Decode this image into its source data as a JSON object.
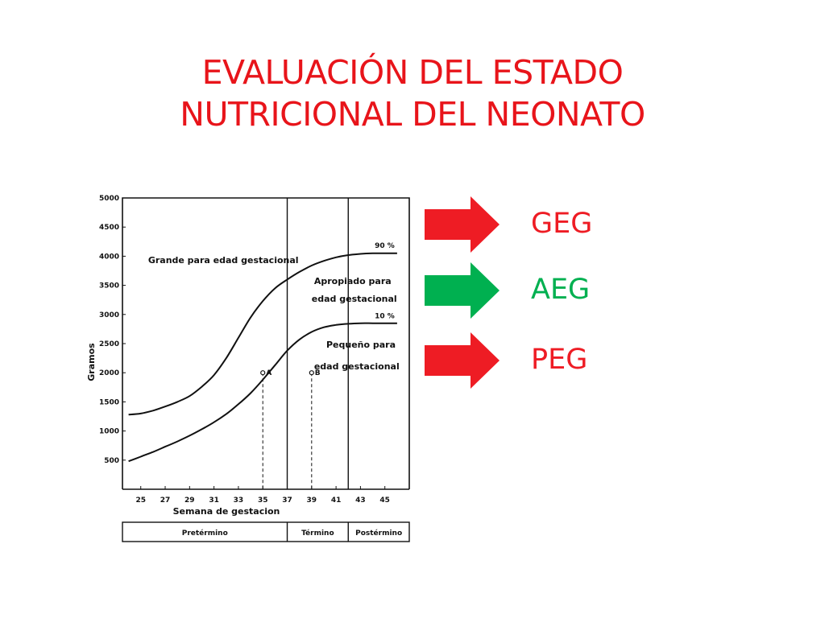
{
  "title": {
    "line1": "EVALUACIÓN DEL ESTADO",
    "line2": "NUTRICIONAL DEL NEONATO",
    "color": "#e8141a"
  },
  "chart_data": {
    "type": "line",
    "xlabel": "Semana de gestacion",
    "ylabel": "Gramos",
    "xlim": [
      23.5,
      47
    ],
    "ylim": [
      0,
      5000
    ],
    "x_ticks": [
      25,
      27,
      29,
      31,
      33,
      35,
      37,
      39,
      41,
      43,
      45
    ],
    "y_ticks": [
      500,
      1000,
      1500,
      2000,
      2500,
      3000,
      3500,
      4000,
      4500,
      5000
    ],
    "y_tick_labels": [
      "500",
      "1000",
      "1500",
      "2000",
      "2500",
      "3000",
      "3500",
      "4000",
      "4500",
      "5000"
    ],
    "grid": false,
    "series": [
      {
        "name": "90 %",
        "x": [
          24,
          25,
          26,
          27,
          28,
          29,
          30,
          31,
          32,
          33,
          34,
          35,
          36,
          37,
          38,
          39,
          40,
          41,
          42,
          43,
          44,
          45,
          46
        ],
        "y": [
          1280,
          1300,
          1350,
          1420,
          1500,
          1600,
          1760,
          1960,
          2250,
          2600,
          2950,
          3230,
          3450,
          3600,
          3730,
          3840,
          3920,
          3980,
          4020,
          4040,
          4050,
          4050,
          4050
        ]
      },
      {
        "name": "10 %",
        "x": [
          24,
          25,
          26,
          27,
          28,
          29,
          30,
          31,
          32,
          33,
          34,
          35,
          36,
          37,
          38,
          39,
          40,
          41,
          42,
          43,
          44,
          45,
          46
        ],
        "y": [
          480,
          560,
          640,
          730,
          820,
          920,
          1030,
          1150,
          1290,
          1460,
          1650,
          1880,
          2130,
          2380,
          2570,
          2700,
          2780,
          2820,
          2840,
          2850,
          2850,
          2850,
          2850
        ]
      }
    ],
    "vertical_lines": [
      37,
      42
    ],
    "points": [
      {
        "label": "A",
        "x": 35,
        "y": 2000
      },
      {
        "label": "B",
        "x": 39,
        "y": 2000
      }
    ],
    "annotations": {
      "geg": "Grande para edad gestacional",
      "aeg_line1": "Apropiado para",
      "aeg_line2": "edad gestacional",
      "peg_line1": "Pequeño para",
      "peg_line2": "edad gestacional"
    },
    "periods": [
      {
        "label": "Pretérmino",
        "from": 23.5,
        "to": 37
      },
      {
        "label": "Término",
        "from": 37,
        "to": 42
      },
      {
        "label": "Postérmino",
        "from": 42,
        "to": 47
      }
    ]
  },
  "arrows": [
    {
      "label": "GEG",
      "color": "#ee1c24"
    },
    {
      "label": "AEG",
      "color": "#00b050"
    },
    {
      "label": "PEG",
      "color": "#ee1c24"
    }
  ]
}
